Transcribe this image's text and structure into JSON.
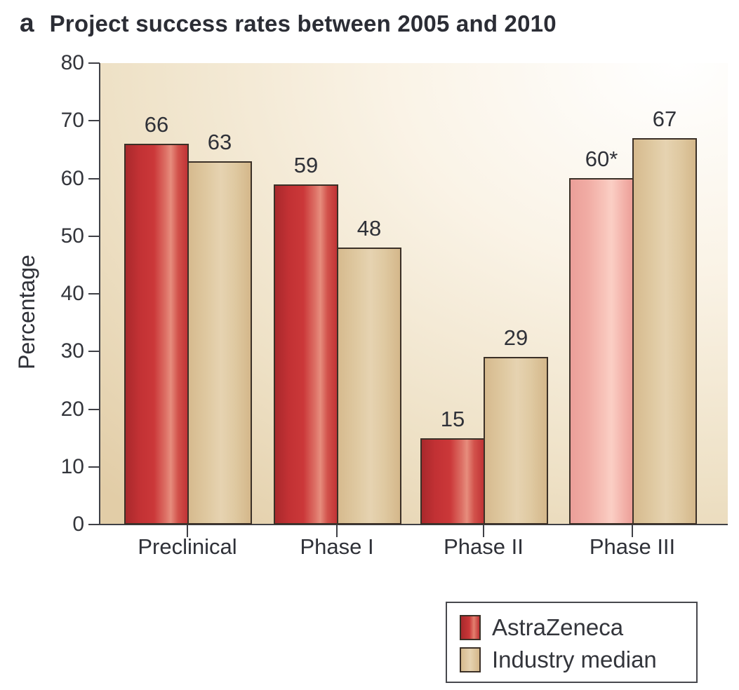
{
  "panel_label": "a",
  "title": "Project success rates between 2005 and 2010",
  "chart_data": {
    "type": "bar",
    "categories": [
      "Preclinical",
      "Phase I",
      "Phase II",
      "Phase III"
    ],
    "series": [
      {
        "name": "AstraZeneca",
        "values": [
          66,
          59,
          15,
          60
        ],
        "labels": [
          "66",
          "59",
          "15",
          "60*"
        ],
        "bar_styles": [
          "red",
          "red",
          "red",
          "pink"
        ]
      },
      {
        "name": "Industry median",
        "values": [
          63,
          48,
          29,
          67
        ],
        "labels": [
          "63",
          "48",
          "29",
          "67"
        ],
        "bar_styles": [
          "tan",
          "tan",
          "tan",
          "tan"
        ]
      }
    ],
    "ylabel": "Percentage",
    "xlabel": "",
    "ylim": [
      0,
      80
    ],
    "yticks": [
      0,
      10,
      20,
      30,
      40,
      50,
      60,
      70,
      80
    ],
    "grid": false,
    "legend_position": "bottom-right"
  },
  "legend": {
    "items": [
      {
        "label": "AstraZeneca",
        "swatch": "red"
      },
      {
        "label": "Industry median",
        "swatch": "tan"
      }
    ]
  },
  "colors": {
    "astrazeneca_red": "#c63436",
    "astrazeneca_red_highlight": "#e78d7d",
    "astrazeneca_pink": "#f1aca4",
    "astrazeneca_pink_highlight": "#fbcfc5",
    "industry_tan": "#ddc59c",
    "industry_tan_highlight": "#e6d3b1",
    "bar_border": "#3b3027",
    "axis": "#3f4046",
    "text": "#2f3138",
    "plot_bg_light": "#ffffff",
    "plot_bg_dark": "#e2cda7"
  }
}
